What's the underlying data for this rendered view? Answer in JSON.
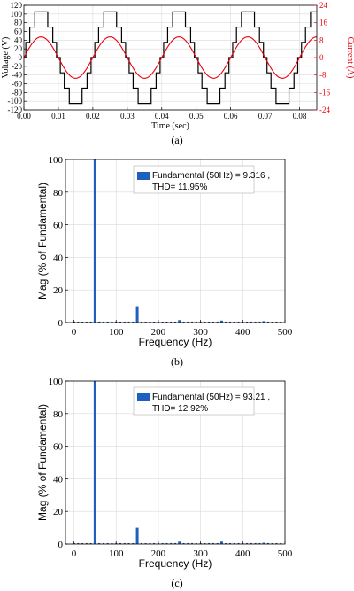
{
  "colors": {
    "voltage": "#000000",
    "current": "#e8000b",
    "bar": "#1f5fbf",
    "grid": "#d9d9d9"
  },
  "chart_data": [
    {
      "type": "line",
      "panel": "(a)",
      "xlabel": "Time (sec)",
      "ylabel": "Voltage (V)",
      "y2label": "Current (A)",
      "xlim": [
        0,
        0.085
      ],
      "ylim": [
        -120,
        120
      ],
      "y2lim": [
        -24,
        24
      ],
      "xticks": [
        "0.00",
        "0.01",
        "0.02",
        "0.03",
        "0.04",
        "0.05",
        "0.06",
        "0.07",
        "0.08"
      ],
      "yticks": [
        "120",
        "100",
        "80",
        "60",
        "40",
        "20",
        "0",
        "-20",
        "-40",
        "-60",
        "-80",
        "-100",
        "-120"
      ],
      "y2ticks": [
        "24",
        "16",
        "8",
        "0",
        "-8",
        "-16",
        "-24"
      ],
      "grid": true,
      "series": [
        {
          "name": "",
          "axis": "left",
          "shape": "staircase",
          "amplitude": 105,
          "frequency_hz": 50,
          "levels": [
            0,
            35,
            70,
            105
          ]
        },
        {
          "name": "",
          "axis": "right",
          "shape": "sine",
          "amplitude": 9.5,
          "frequency_hz": 50
        }
      ]
    },
    {
      "type": "bar",
      "panel": "(b)",
      "xlabel": "Frequency (Hz)",
      "ylabel": "Mag (% of Fundamental)",
      "xlim": [
        -20,
        500
      ],
      "ylim": [
        0,
        100
      ],
      "xticks": [
        "0",
        "100",
        "200",
        "300",
        "400",
        "500"
      ],
      "yticks": [
        "0",
        "20",
        "40",
        "60",
        "80",
        "100"
      ],
      "grid": true,
      "legend": {
        "line1": "Fundamental (50Hz) = 9.316 ,",
        "line2": "THD= 11.95%",
        "placement": "top-right"
      },
      "x": [
        0,
        50,
        60,
        150,
        250,
        350,
        450
      ],
      "values": [
        0.6,
        100,
        0.5,
        10,
        1.5,
        1.2,
        0.9
      ]
    },
    {
      "type": "bar",
      "panel": "(c)",
      "xlabel": "Frequency (Hz)",
      "ylabel": "Mag (% of Fundamental)",
      "xlim": [
        -20,
        500
      ],
      "ylim": [
        0,
        100
      ],
      "xticks": [
        "0",
        "100",
        "200",
        "300",
        "400",
        "500"
      ],
      "yticks": [
        "0",
        "20",
        "40",
        "60",
        "80",
        "100"
      ],
      "grid": true,
      "legend": {
        "line1": "Fundamental (50Hz) = 93.21 ,",
        "line2": "THD= 12.92%",
        "placement": "top-right"
      },
      "x": [
        0,
        50,
        150,
        250,
        350,
        450
      ],
      "values": [
        0.5,
        100,
        10,
        1.5,
        1.5,
        0.8
      ]
    }
  ]
}
